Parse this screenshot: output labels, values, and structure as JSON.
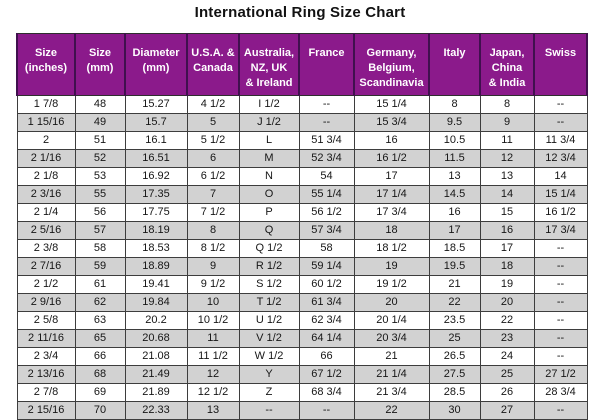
{
  "title": "International Ring Size Chart",
  "colors": {
    "header_bg": "#8B1A8B",
    "header_text": "#FFFFFF",
    "row_bg": "#FFFFFF",
    "row_alt_bg": "#D2D2D2",
    "grid_border": "#3D3D3D"
  },
  "chart_data": {
    "type": "table",
    "title": "International Ring Size Chart",
    "columns": [
      "Size\n(inches)",
      "Size\n(mm)",
      "Diameter\n(mm)",
      "U.S.A. &\nCanada",
      "Australia,\nNZ, UK\n& Ireland",
      "France",
      "Germany,\nBelgium,\nScandinavia",
      "Italy",
      "Japan,\nChina\n& India",
      "Swiss"
    ],
    "rows": [
      [
        "1 7/8",
        "48",
        "15.27",
        "4 1/2",
        "I 1/2",
        "--",
        "15 1/4",
        "8",
        "8",
        "--"
      ],
      [
        "1 15/16",
        "49",
        "15.7",
        "5",
        "J 1/2",
        "--",
        "15 3/4",
        "9.5",
        "9",
        "--"
      ],
      [
        "2",
        "51",
        "16.1",
        "5 1/2",
        "L",
        "51 3/4",
        "16",
        "10.5",
        "11",
        "11 3/4"
      ],
      [
        "2 1/16",
        "52",
        "16.51",
        "6",
        "M",
        "52 3/4",
        "16 1/2",
        "11.5",
        "12",
        "12 3/4"
      ],
      [
        "2 1/8",
        "53",
        "16.92",
        "6 1/2",
        "N",
        "54",
        "17",
        "13",
        "13",
        "14"
      ],
      [
        "2 3/16",
        "55",
        "17.35",
        "7",
        "O",
        "55 1/4",
        "17 1/4",
        "14.5",
        "14",
        "15 1/4"
      ],
      [
        "2 1/4",
        "56",
        "17.75",
        "7 1/2",
        "P",
        "56 1/2",
        "17 3/4",
        "16",
        "15",
        "16 1/2"
      ],
      [
        "2 5/16",
        "57",
        "18.19",
        "8",
        "Q",
        "57 3/4",
        "18",
        "17",
        "16",
        "17 3/4"
      ],
      [
        "2 3/8",
        "58",
        "18.53",
        "8 1/2",
        "Q 1/2",
        "58",
        "18 1/2",
        "18.5",
        "17",
        "--"
      ],
      [
        "2 7/16",
        "59",
        "18.89",
        "9",
        "R 1/2",
        "59 1/4",
        "19",
        "19.5",
        "18",
        "--"
      ],
      [
        "2 1/2",
        "61",
        "19.41",
        "9 1/2",
        "S 1/2",
        "60 1/2",
        "19 1/2",
        "21",
        "19",
        "--"
      ],
      [
        "2 9/16",
        "62",
        "19.84",
        "10",
        "T 1/2",
        "61 3/4",
        "20",
        "22",
        "20",
        "--"
      ],
      [
        "2 5/8",
        "63",
        "20.2",
        "10 1/2",
        "U 1/2",
        "62 3/4",
        "20 1/4",
        "23.5",
        "22",
        "--"
      ],
      [
        "2 11/16",
        "65",
        "20.68",
        "11",
        "V 1/2",
        "64 1/4",
        "20 3/4",
        "25",
        "23",
        "--"
      ],
      [
        "2 3/4",
        "66",
        "21.08",
        "11 1/2",
        "W 1/2",
        "66",
        "21",
        "26.5",
        "24",
        "--"
      ],
      [
        "2 13/16",
        "68",
        "21.49",
        "12",
        "Y",
        "67 1/2",
        "21 1/4",
        "27.5",
        "25",
        "27 1/2"
      ],
      [
        "2 7/8",
        "69",
        "21.89",
        "12 1/2",
        "Z",
        "68 3/4",
        "21 3/4",
        "28.5",
        "26",
        "28 3/4"
      ],
      [
        "2 15/16",
        "70",
        "22.33",
        "13",
        "--",
        "--",
        "22",
        "30",
        "27",
        "--"
      ]
    ]
  }
}
